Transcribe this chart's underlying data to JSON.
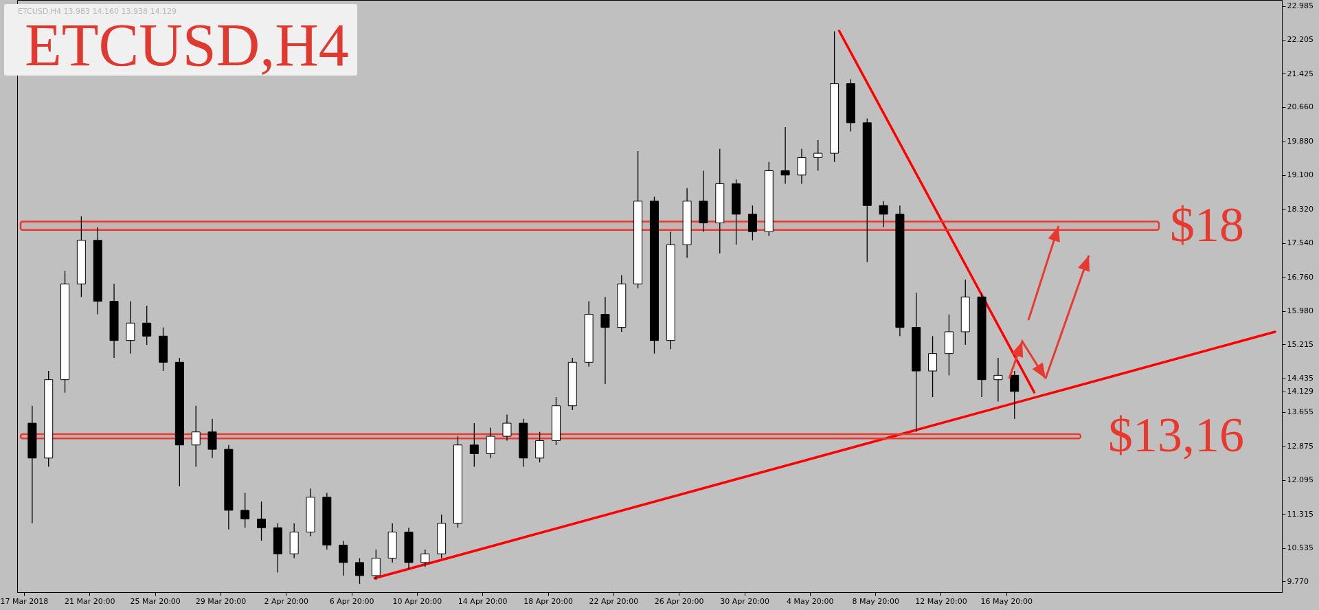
{
  "chart_data": {
    "type": "candlestick",
    "title": "ETCUSD,H4",
    "subtitle": "ETCUSD,H4 13.983 14.160 13.938 14.129",
    "x": [
      "2018-03-18T08:00",
      "2018-03-19T08:00",
      "2018-03-20T08:00",
      "2018-03-21T08:00",
      "2018-03-22T08:00",
      "2018-03-23T08:00",
      "2018-03-24T08:00",
      "2018-03-25T08:00",
      "2018-03-26T08:00",
      "2018-03-27T08:00",
      "2018-03-28T08:00",
      "2018-03-29T08:00",
      "2018-03-30T08:00",
      "2018-03-31T08:00",
      "2018-04-01T08:00",
      "2018-04-02T08:00",
      "2018-04-03T08:00",
      "2018-04-04T08:00",
      "2018-04-05T08:00",
      "2018-04-06T08:00",
      "2018-04-07T08:00",
      "2018-04-08T08:00",
      "2018-04-09T08:00",
      "2018-04-10T08:00",
      "2018-04-11T08:00",
      "2018-04-12T08:00",
      "2018-04-13T08:00",
      "2018-04-14T08:00",
      "2018-04-15T08:00",
      "2018-04-16T08:00",
      "2018-04-17T08:00",
      "2018-04-18T08:00",
      "2018-04-19T08:00",
      "2018-04-20T08:00",
      "2018-04-21T08:00",
      "2018-04-22T08:00",
      "2018-04-23T08:00",
      "2018-04-24T08:00",
      "2018-04-25T08:00",
      "2018-04-26T08:00",
      "2018-04-27T08:00",
      "2018-04-28T08:00",
      "2018-04-29T08:00",
      "2018-04-30T08:00",
      "2018-05-01T08:00",
      "2018-05-02T08:00",
      "2018-05-03T08:00",
      "2018-05-04T08:00",
      "2018-05-05T08:00",
      "2018-05-06T08:00",
      "2018-05-07T08:00",
      "2018-05-08T08:00",
      "2018-05-09T08:00",
      "2018-05-10T08:00",
      "2018-05-11T08:00",
      "2018-05-12T08:00",
      "2018-05-13T08:00",
      "2018-05-14T08:00",
      "2018-05-15T08:00",
      "2018-05-16T08:00",
      "2018-05-17T08:00"
    ],
    "ohlc": [
      [
        13.4,
        13.8,
        11.1,
        12.6
      ],
      [
        12.6,
        14.6,
        12.4,
        14.4
      ],
      [
        14.4,
        16.9,
        14.1,
        16.6
      ],
      [
        16.6,
        18.15,
        16.3,
        17.6
      ],
      [
        17.6,
        17.9,
        15.9,
        16.2
      ],
      [
        16.2,
        16.6,
        14.9,
        15.3
      ],
      [
        15.3,
        16.2,
        15.0,
        15.7
      ],
      [
        15.7,
        16.1,
        15.2,
        15.4
      ],
      [
        15.4,
        15.6,
        14.6,
        14.8
      ],
      [
        14.8,
        14.9,
        11.95,
        12.9
      ],
      [
        12.9,
        13.8,
        12.4,
        13.2
      ],
      [
        13.2,
        13.5,
        12.6,
        12.8
      ],
      [
        12.8,
        12.9,
        10.96,
        11.4
      ],
      [
        11.4,
        11.8,
        11.0,
        11.2
      ],
      [
        11.2,
        11.6,
        10.7,
        11.0
      ],
      [
        11.0,
        11.1,
        9.97,
        10.4
      ],
      [
        10.4,
        11.1,
        10.3,
        10.9
      ],
      [
        10.9,
        11.9,
        10.8,
        11.7
      ],
      [
        11.7,
        11.8,
        10.5,
        10.6
      ],
      [
        10.6,
        10.7,
        9.9,
        10.2
      ],
      [
        10.2,
        10.3,
        9.71,
        9.9
      ],
      [
        9.9,
        10.5,
        9.8,
        10.3
      ],
      [
        10.3,
        11.1,
        10.2,
        10.9
      ],
      [
        10.9,
        11.0,
        10.05,
        10.2
      ],
      [
        10.2,
        10.5,
        10.1,
        10.4
      ],
      [
        10.4,
        11.3,
        10.3,
        11.1
      ],
      [
        11.1,
        13.1,
        11.0,
        12.9
      ],
      [
        12.9,
        13.4,
        12.4,
        12.7
      ],
      [
        12.7,
        13.3,
        12.6,
        13.1
      ],
      [
        13.1,
        13.6,
        13.0,
        13.4
      ],
      [
        13.4,
        13.5,
        12.4,
        12.6
      ],
      [
        12.6,
        13.2,
        12.5,
        13.0
      ],
      [
        13.0,
        14.0,
        12.9,
        13.8
      ],
      [
        13.8,
        14.9,
        13.7,
        14.8
      ],
      [
        14.8,
        16.2,
        14.7,
        15.9
      ],
      [
        15.9,
        16.3,
        14.3,
        15.6
      ],
      [
        15.6,
        16.8,
        15.5,
        16.6
      ],
      [
        16.6,
        19.65,
        16.5,
        18.5
      ],
      [
        18.5,
        18.6,
        15.0,
        15.3
      ],
      [
        15.3,
        17.8,
        15.1,
        17.5
      ],
      [
        17.5,
        18.8,
        17.2,
        18.5
      ],
      [
        18.5,
        19.2,
        17.8,
        18.0
      ],
      [
        18.0,
        19.7,
        17.3,
        18.9
      ],
      [
        18.9,
        19.0,
        17.5,
        18.2
      ],
      [
        18.2,
        18.4,
        17.6,
        17.8
      ],
      [
        17.8,
        19.4,
        17.7,
        19.2
      ],
      [
        19.2,
        20.2,
        18.9,
        19.1
      ],
      [
        19.1,
        19.7,
        18.9,
        19.5
      ],
      [
        19.5,
        19.9,
        19.2,
        19.6
      ],
      [
        19.6,
        22.4,
        19.4,
        21.2
      ],
      [
        21.2,
        21.3,
        20.1,
        20.3
      ],
      [
        20.3,
        20.4,
        17.1,
        18.4
      ],
      [
        18.4,
        18.5,
        17.9,
        18.2
      ],
      [
        18.2,
        18.4,
        15.4,
        15.6
      ],
      [
        15.6,
        16.4,
        13.2,
        14.6
      ],
      [
        14.6,
        15.4,
        14.0,
        15.0
      ],
      [
        15.0,
        15.9,
        14.5,
        15.5
      ],
      [
        15.5,
        16.7,
        15.2,
        16.3
      ],
      [
        16.3,
        16.4,
        14.0,
        14.4
      ],
      [
        14.4,
        14.9,
        13.9,
        14.5
      ],
      [
        14.5,
        14.6,
        13.5,
        14.13
      ]
    ],
    "series": [
      {
        "type": "line",
        "color": "#ff0000",
        "x": [
          "2018-04-08T06:00",
          "2018-06-02T06:00"
        ],
        "values": [
          9.84,
          15.5
        ]
      },
      {
        "type": "line",
        "color": "#ff0000",
        "x": [
          "2018-05-06T15:00",
          "2018-05-18T13:00"
        ],
        "values": [
          22.41,
          14.11
        ]
      }
    ],
    "bands": [
      {
        "axis": "y",
        "from": 17.84,
        "to": 18.03,
        "color": "#e8392f",
        "label": "$18"
      },
      {
        "axis": "y",
        "from": 13.05,
        "to": 13.15,
        "color": "#e8392f",
        "label": "$13,16"
      }
    ],
    "xlim": [
      "2018-03-17T15:00",
      "2018-06-02T11:00"
    ],
    "xticks": [
      {
        "value": "2018-03-17T20:00",
        "label": "17 Mar 2018"
      },
      {
        "value": "2018-03-21T20:00",
        "label": "21 Mar 20:00"
      },
      {
        "value": "2018-03-25T20:00",
        "label": "25 Mar 20:00"
      },
      {
        "value": "2018-03-29T20:00",
        "label": "29 Mar 20:00"
      },
      {
        "value": "2018-04-02T20:00",
        "label": "2 Apr 20:00"
      },
      {
        "value": "2018-04-06T20:00",
        "label": "6 Apr 20:00"
      },
      {
        "value": "2018-04-10T20:00",
        "label": "10 Apr 20:00"
      },
      {
        "value": "2018-04-14T20:00",
        "label": "14 Apr 20:00"
      },
      {
        "value": "2018-04-18T20:00",
        "label": "18 Apr 20:00"
      },
      {
        "value": "2018-04-22T20:00",
        "label": "22 Apr 20:00"
      },
      {
        "value": "2018-04-26T20:00",
        "label": "26 Apr 20:00"
      },
      {
        "value": "2018-04-30T20:00",
        "label": "30 Apr 20:00"
      },
      {
        "value": "2018-05-04T20:00",
        "label": "4 May 20:00"
      },
      {
        "value": "2018-05-08T20:00",
        "label": "8 May 20:00"
      },
      {
        "value": "2018-05-12T20:00",
        "label": "12 May 20:00"
      },
      {
        "value": "2018-05-16T20:00",
        "label": "16 May 20:00"
      }
    ],
    "ylim": [
      9.52,
      23.12
    ],
    "yticks": [
      {
        "value": 9.77,
        "label": "9.770"
      },
      {
        "value": 10.535,
        "label": "10.535"
      },
      {
        "value": 11.315,
        "label": "11.315"
      },
      {
        "value": 12.095,
        "label": "12.095"
      },
      {
        "value": 12.875,
        "label": "12.875"
      },
      {
        "value": 13.655,
        "label": "13.655"
      },
      {
        "value": 14.129,
        "label": "14.129"
      },
      {
        "value": 14.435,
        "label": "14.435"
      },
      {
        "value": 15.215,
        "label": "15.215"
      },
      {
        "value": 15.98,
        "label": "15.980"
      },
      {
        "value": 16.76,
        "label": "16.760"
      },
      {
        "value": 17.54,
        "label": "17.540"
      },
      {
        "value": 18.32,
        "label": "18.320"
      },
      {
        "value": 19.1,
        "label": "19.100"
      },
      {
        "value": 19.88,
        "label": "19.880"
      },
      {
        "value": 20.66,
        "label": "20.660"
      },
      {
        "value": 21.425,
        "label": "21.425"
      },
      {
        "value": 22.205,
        "label": "22.205"
      },
      {
        "value": 22.985,
        "label": "22.985"
      }
    ]
  }
}
